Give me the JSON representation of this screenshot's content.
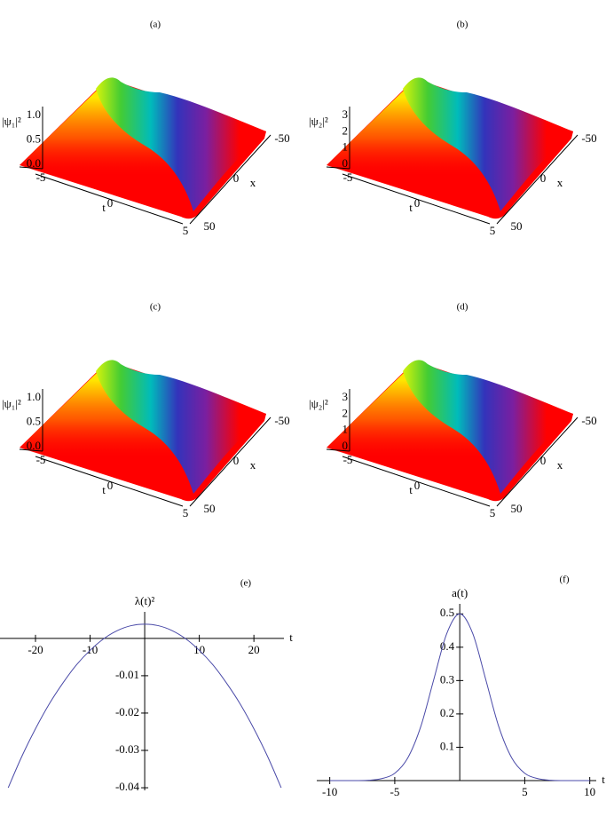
{
  "panels": [
    {
      "caption": "(a)",
      "zlabel": "|ψ₁|²",
      "zticks": [
        "1.0",
        "0.5",
        "0.0"
      ],
      "tticks": [
        "-5",
        "0",
        "5"
      ],
      "tlabel": "t",
      "xticks": [
        "-50",
        "0",
        "50"
      ],
      "xlabel": "x"
    },
    {
      "caption": "(b)",
      "zlabel": "|ψ₂|²",
      "zticks": [
        "3",
        "2",
        "1",
        "0"
      ],
      "tticks": [
        "-5",
        "0",
        "5"
      ],
      "tlabel": "t",
      "xticks": [
        "-50",
        "0",
        "50"
      ],
      "xlabel": "x"
    },
    {
      "caption": "(c)",
      "zlabel": "|ψ₁|²",
      "zticks": [
        "1.0",
        "0.5",
        "0.0"
      ],
      "tticks": [
        "-5",
        "0",
        "5"
      ],
      "tlabel": "t",
      "xticks": [
        "-50",
        "0",
        "50"
      ],
      "xlabel": "x"
    },
    {
      "caption": "(d)",
      "zlabel": "|ψ₂|²",
      "zticks": [
        "3",
        "2",
        "1",
        "0"
      ],
      "tticks": [
        "-5",
        "0",
        "5"
      ],
      "tlabel": "t",
      "xticks": [
        "-50",
        "0",
        "50"
      ],
      "xlabel": "x"
    }
  ],
  "chart_data": [
    {
      "type": "line",
      "title": "(e)",
      "ylabel": "λ(t)²",
      "xlabel": "t",
      "color": "#4a4aa8",
      "x": [
        -25,
        -22.5,
        -20,
        -17.5,
        -15,
        -12.5,
        -10,
        -7.5,
        -5,
        -2.5,
        0,
        2.5,
        5,
        7.5,
        10,
        12.5,
        15,
        17.5,
        20,
        22.5,
        25
      ],
      "values": [
        -0.04,
        -0.0316,
        -0.0242,
        -0.0176,
        -0.012,
        -0.0071,
        -0.0032,
        -0.0001,
        0.0021,
        0.0034,
        0.0038,
        0.0034,
        0.0021,
        -0.0001,
        -0.0032,
        -0.0071,
        -0.012,
        -0.0176,
        -0.0242,
        -0.0316,
        -0.04
      ],
      "xlim": [
        -26.5,
        25.5
      ],
      "ylim": [
        -0.0407,
        0.0071
      ],
      "xticks": [
        -20,
        -10,
        10,
        20
      ],
      "yticks": [
        -0.01,
        -0.02,
        -0.03,
        -0.04
      ]
    },
    {
      "type": "line",
      "title": "(f)",
      "ylabel": "a(t)",
      "xlabel": "t",
      "color": "#4a4aa8",
      "x": [
        -10,
        -9,
        -8,
        -7,
        -6,
        -5,
        -4,
        -3,
        -2,
        -1,
        0,
        1,
        2,
        3,
        4,
        5,
        6,
        7,
        8,
        9,
        10
      ],
      "values": [
        0,
        0,
        0,
        0.001,
        0.006,
        0.022,
        0.068,
        0.162,
        0.303,
        0.441,
        0.5,
        0.441,
        0.303,
        0.162,
        0.068,
        0.022,
        0.006,
        0.001,
        0,
        0,
        0
      ],
      "xlim": [
        -11,
        10.5
      ],
      "ylim": [
        0,
        0.53
      ],
      "xticks": [
        -10,
        -5,
        5,
        10
      ],
      "yticks": [
        0.1,
        0.2,
        0.3,
        0.4,
        0.5
      ]
    }
  ]
}
